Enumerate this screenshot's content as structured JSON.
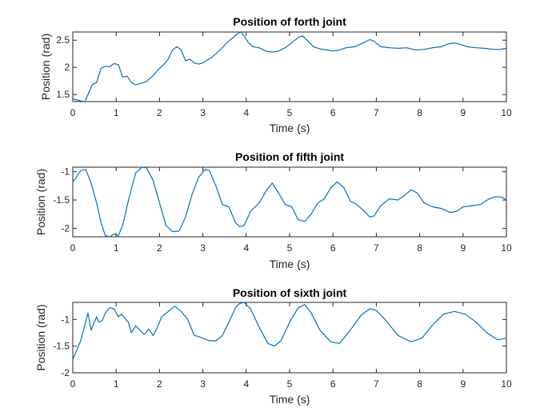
{
  "chart_data": [
    {
      "type": "line",
      "title": "Position of forth joint",
      "xlabel": "Time (s)",
      "ylabel": "Position (rad)",
      "xlim": [
        0,
        10
      ],
      "ylim": [
        1.37,
        2.65
      ],
      "xticks": [
        0,
        1,
        2,
        3,
        4,
        5,
        6,
        7,
        8,
        9,
        10
      ],
      "yticks": [
        1.5,
        2,
        2.5
      ],
      "xtick_labels": [
        "0",
        "1",
        "2",
        "3",
        "4",
        "5",
        "6",
        "7",
        "8",
        "9",
        "10"
      ],
      "ytick_labels": [
        "1.5",
        "2",
        "2.5"
      ],
      "grid": false,
      "color": "#0072bd",
      "series": [
        {
          "x": [
            0,
            0.1,
            0.2,
            0.28,
            0.35,
            0.45,
            0.55,
            0.65,
            0.75,
            0.85,
            0.95,
            1.05,
            1.15,
            1.25,
            1.35,
            1.45,
            1.55,
            1.7,
            1.85,
            2.0,
            2.1,
            2.2,
            2.3,
            2.4,
            2.5,
            2.6,
            2.7,
            2.8,
            2.9,
            3.0,
            3.1,
            3.2,
            3.3,
            3.4,
            3.55,
            3.7,
            3.8,
            3.88,
            3.95,
            4.05,
            4.15,
            4.3,
            4.45,
            4.6,
            4.75,
            4.9,
            5.05,
            5.2,
            5.3,
            5.4,
            5.55,
            5.7,
            5.85,
            6.0,
            6.15,
            6.3,
            6.5,
            6.7,
            6.85,
            6.95,
            7.1,
            7.3,
            7.5,
            7.7,
            7.9,
            8.1,
            8.3,
            8.5,
            8.65,
            8.8,
            8.95,
            9.1,
            9.3,
            9.5,
            9.7,
            9.85,
            10.0
          ],
          "y": [
            1.42,
            1.4,
            1.38,
            1.37,
            1.5,
            1.68,
            1.72,
            1.98,
            2.02,
            2.01,
            2.07,
            2.05,
            1.82,
            1.84,
            1.72,
            1.68,
            1.7,
            1.74,
            1.85,
            1.98,
            2.05,
            2.15,
            2.32,
            2.38,
            2.32,
            2.12,
            2.15,
            2.08,
            2.06,
            2.08,
            2.13,
            2.18,
            2.25,
            2.32,
            2.45,
            2.55,
            2.62,
            2.65,
            2.58,
            2.45,
            2.38,
            2.36,
            2.3,
            2.28,
            2.3,
            2.36,
            2.45,
            2.55,
            2.58,
            2.5,
            2.38,
            2.34,
            2.32,
            2.3,
            2.32,
            2.36,
            2.38,
            2.45,
            2.51,
            2.48,
            2.38,
            2.36,
            2.35,
            2.36,
            2.32,
            2.33,
            2.36,
            2.38,
            2.43,
            2.45,
            2.42,
            2.38,
            2.36,
            2.35,
            2.33,
            2.33,
            2.35
          ]
        }
      ]
    },
    {
      "type": "line",
      "title": "Position of fifth joint",
      "xlabel": "Time (s)",
      "ylabel": "Position (rad)",
      "xlim": [
        0,
        10
      ],
      "ylim": [
        -2.15,
        -0.92
      ],
      "xticks": [
        0,
        1,
        2,
        3,
        4,
        5,
        6,
        7,
        8,
        9,
        10
      ],
      "yticks": [
        -2,
        -1.5,
        -1
      ],
      "xtick_labels": [
        "0",
        "1",
        "2",
        "3",
        "4",
        "5",
        "6",
        "7",
        "8",
        "9",
        "10"
      ],
      "ytick_labels": [
        "-2",
        "-1.5",
        "-1"
      ],
      "grid": false,
      "color": "#0072bd",
      "series": [
        {
          "x": [
            0,
            0.08,
            0.18,
            0.3,
            0.42,
            0.55,
            0.65,
            0.75,
            0.85,
            0.95,
            1.05,
            1.15,
            1.3,
            1.45,
            1.6,
            1.7,
            1.85,
            2.0,
            2.15,
            2.3,
            2.45,
            2.6,
            2.75,
            2.9,
            3.05,
            3.15,
            3.3,
            3.45,
            3.6,
            3.75,
            3.85,
            3.95,
            4.1,
            4.3,
            4.45,
            4.6,
            4.75,
            4.9,
            5.05,
            5.2,
            5.35,
            5.5,
            5.65,
            5.8,
            5.95,
            6.1,
            6.25,
            6.4,
            6.55,
            6.7,
            6.85,
            6.95,
            7.1,
            7.3,
            7.5,
            7.65,
            7.8,
            7.95,
            8.1,
            8.3,
            8.5,
            8.7,
            8.85,
            9.0,
            9.2,
            9.4,
            9.6,
            9.75,
            9.9,
            10.0
          ],
          "y": [
            -1.18,
            -1.1,
            -0.98,
            -0.96,
            -1.2,
            -1.55,
            -1.9,
            -2.13,
            -2.15,
            -2.1,
            -2.13,
            -1.95,
            -1.45,
            -1.02,
            -0.92,
            -0.93,
            -1.15,
            -1.55,
            -1.95,
            -2.06,
            -2.05,
            -1.8,
            -1.4,
            -1.1,
            -0.96,
            -0.98,
            -1.25,
            -1.58,
            -1.62,
            -1.9,
            -1.97,
            -1.95,
            -1.7,
            -1.55,
            -1.35,
            -1.2,
            -1.38,
            -1.58,
            -1.62,
            -1.85,
            -1.88,
            -1.75,
            -1.55,
            -1.48,
            -1.28,
            -1.18,
            -1.28,
            -1.52,
            -1.58,
            -1.68,
            -1.8,
            -1.78,
            -1.6,
            -1.48,
            -1.5,
            -1.42,
            -1.32,
            -1.38,
            -1.55,
            -1.62,
            -1.65,
            -1.72,
            -1.7,
            -1.62,
            -1.6,
            -1.58,
            -1.48,
            -1.44,
            -1.45,
            -1.5
          ]
        }
      ]
    },
    {
      "type": "line",
      "title": "Position of sixth joint",
      "xlabel": "Time (s)",
      "ylabel": "Position (rad)",
      "xlim": [
        0,
        10
      ],
      "ylim": [
        -2,
        -0.68
      ],
      "xticks": [
        0,
        1,
        2,
        3,
        4,
        5,
        6,
        7,
        8,
        9,
        10
      ],
      "yticks": [
        -2,
        -1.5,
        -1
      ],
      "xtick_labels": [
        "0",
        "1",
        "2",
        "3",
        "4",
        "5",
        "6",
        "7",
        "8",
        "9",
        "10"
      ],
      "ytick_labels": [
        "-2",
        "-1.5",
        "-1"
      ],
      "grid": false,
      "color": "#0072bd",
      "series": [
        {
          "x": [
            0,
            0.08,
            0.18,
            0.28,
            0.35,
            0.42,
            0.48,
            0.55,
            0.6,
            0.68,
            0.75,
            0.85,
            0.95,
            1.05,
            1.12,
            1.2,
            1.28,
            1.35,
            1.45,
            1.55,
            1.65,
            1.75,
            1.85,
            1.95,
            2.05,
            2.2,
            2.35,
            2.5,
            2.65,
            2.8,
            2.9,
            3.0,
            3.15,
            3.3,
            3.45,
            3.6,
            3.75,
            3.85,
            3.95,
            4.1,
            4.3,
            4.5,
            4.65,
            4.8,
            5.0,
            5.2,
            5.35,
            5.5,
            5.7,
            5.95,
            6.15,
            6.4,
            6.65,
            6.85,
            7.0,
            7.2,
            7.5,
            7.8,
            8.05,
            8.3,
            8.55,
            8.8,
            9.05,
            9.3,
            9.55,
            9.8,
            10.0
          ],
          "y": [
            -1.75,
            -1.6,
            -1.4,
            -1.1,
            -0.88,
            -1.2,
            -1.08,
            -0.95,
            -1.05,
            -1.02,
            -0.88,
            -0.78,
            -0.8,
            -0.95,
            -0.9,
            -0.98,
            -1.05,
            -1.25,
            -1.12,
            -1.2,
            -1.28,
            -1.18,
            -1.3,
            -1.15,
            -0.95,
            -0.85,
            -0.75,
            -0.85,
            -1.0,
            -1.3,
            -1.32,
            -1.35,
            -1.4,
            -1.4,
            -1.3,
            -1.05,
            -0.78,
            -0.7,
            -0.68,
            -0.8,
            -1.15,
            -1.45,
            -1.5,
            -1.4,
            -1.05,
            -0.78,
            -0.72,
            -0.88,
            -1.2,
            -1.42,
            -1.45,
            -1.2,
            -0.92,
            -0.8,
            -0.83,
            -1.0,
            -1.3,
            -1.42,
            -1.35,
            -1.1,
            -0.9,
            -0.85,
            -0.9,
            -1.05,
            -1.25,
            -1.38,
            -1.35
          ]
        }
      ]
    }
  ]
}
